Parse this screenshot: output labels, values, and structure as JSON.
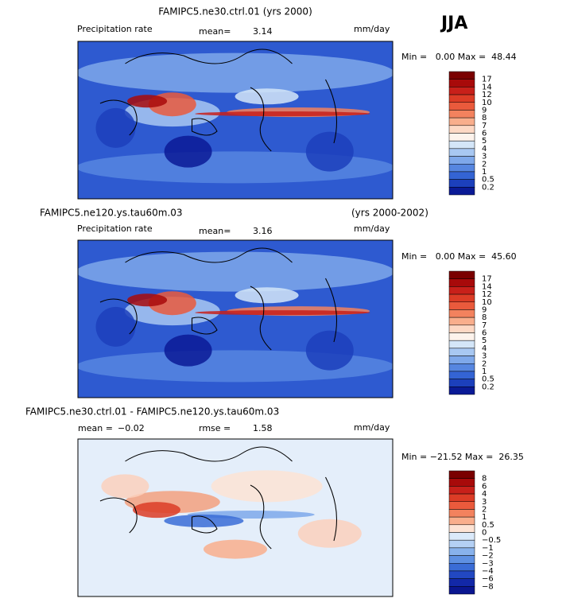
{
  "season": "JJA",
  "panels": [
    {
      "title": "FAMIPC5.ne30.ctrl.01 (yrs 2000)",
      "variable": "Precipitation rate",
      "mean_label": "mean=",
      "mean": "3.14",
      "units": "mm/day",
      "range_text": "Min =   0.00 Max =  48.44",
      "colorbar_labels": [
        "17",
        "14",
        "12",
        "10",
        "9",
        "8",
        "7",
        "6",
        "5",
        "4",
        "3",
        "2",
        "1",
        "0.5",
        "0.2"
      ],
      "colors": [
        "#7a0000",
        "#a80a0a",
        "#c8201a",
        "#dc3c26",
        "#ea5a3c",
        "#f3825e",
        "#f9ae8c",
        "#fdd8c4",
        "#fdf3ec",
        "#d4e6f8",
        "#a8c8f2",
        "#7ea8ea",
        "#5686e0",
        "#3464d4",
        "#1c40bc",
        "#0a1a96"
      ]
    },
    {
      "title": "FAMIPC5.ne120.ys.tau60m.03",
      "years": "(yrs 2000-2002)",
      "variable": "Precipitation rate",
      "mean_label": "mean=",
      "mean": "3.16",
      "units": "mm/day",
      "range_text": "Min =   0.00 Max =  45.60",
      "colorbar_labels": [
        "17",
        "14",
        "12",
        "10",
        "9",
        "8",
        "7",
        "6",
        "5",
        "4",
        "3",
        "2",
        "1",
        "0.5",
        "0.2"
      ],
      "colors": [
        "#7a0000",
        "#a80a0a",
        "#c8201a",
        "#dc3c26",
        "#ea5a3c",
        "#f3825e",
        "#f9ae8c",
        "#fdd8c4",
        "#fdf3ec",
        "#d4e6f8",
        "#a8c8f2",
        "#7ea8ea",
        "#5686e0",
        "#3464d4",
        "#1c40bc",
        "#0a1a96"
      ]
    },
    {
      "title": "FAMIPC5.ne30.ctrl.01 - FAMIPC5.ne120.ys.tau60m.03",
      "mean_label": "mean =",
      "mean": "−0.02",
      "rmse_label": "rmse =",
      "rmse": "1.58",
      "units": "mm/day",
      "range_text": "Min = −21.52 Max =  26.35",
      "colorbar_labels": [
        "8",
        "6",
        "4",
        "3",
        "2",
        "1",
        "0.5",
        "0",
        "−0.5",
        "−1",
        "−2",
        "−3",
        "−4",
        "−6",
        "−8"
      ],
      "colors": [
        "#7a0000",
        "#a80a0a",
        "#c8201a",
        "#dc3c26",
        "#ea5a3c",
        "#f3825e",
        "#f9ae8c",
        "#fde3d4",
        "#dbeafa",
        "#b4d0f4",
        "#88b2ec",
        "#5e90e2",
        "#3a6cd6",
        "#2248c2",
        "#1228a8",
        "#0a1690"
      ]
    }
  ]
}
